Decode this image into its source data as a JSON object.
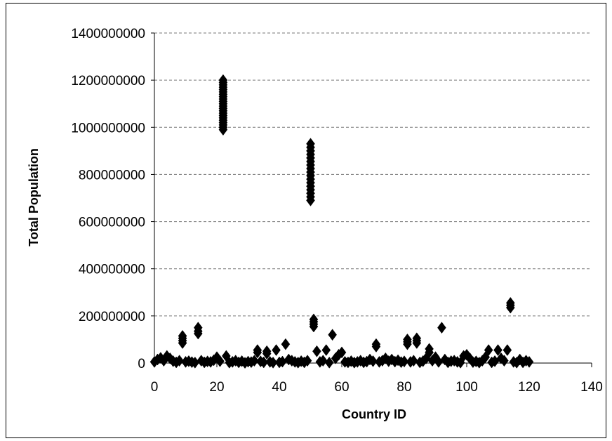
{
  "chart_data": {
    "type": "scatter",
    "title": "",
    "xlabel": "Country ID",
    "ylabel": "Total Population",
    "xlim": [
      0,
      140
    ],
    "ylim": [
      0,
      1400000000
    ],
    "x_ticks": [
      "0",
      "20",
      "40",
      "60",
      "80",
      "100",
      "120",
      "140"
    ],
    "y_ticks": [
      "0",
      "200000000",
      "400000000",
      "600000000",
      "800000000",
      "1000000000",
      "1200000000",
      "1400000000"
    ],
    "grid": "horizontal dashed",
    "legend": "none",
    "marker": "diamond",
    "marker_color": "#000000",
    "series": [
      {
        "points": [
          [
            0,
            5000000
          ],
          [
            1,
            15000000
          ],
          [
            2,
            22000000
          ],
          [
            3,
            10000000
          ],
          [
            4,
            30000000
          ],
          [
            5,
            20000000
          ],
          [
            6,
            8000000
          ],
          [
            7,
            3000000
          ],
          [
            8,
            10000000
          ],
          [
            9,
            85000000
          ],
          [
            9,
            95000000
          ],
          [
            9,
            105000000
          ],
          [
            9,
            115000000
          ],
          [
            10,
            5000000
          ],
          [
            11,
            8000000
          ],
          [
            12,
            4000000
          ],
          [
            13,
            2000000
          ],
          [
            14,
            125000000
          ],
          [
            14,
            135000000
          ],
          [
            14,
            150000000
          ],
          [
            15,
            10000000
          ],
          [
            16,
            3000000
          ],
          [
            17,
            7000000
          ],
          [
            18,
            5000000
          ],
          [
            19,
            12000000
          ],
          [
            20,
            25000000
          ],
          [
            21,
            8000000
          ],
          [
            22,
            990000000
          ],
          [
            22,
            1000000000
          ],
          [
            22,
            1010000000
          ],
          [
            22,
            1020000000
          ],
          [
            22,
            1030000000
          ],
          [
            22,
            1040000000
          ],
          [
            22,
            1050000000
          ],
          [
            22,
            1060000000
          ],
          [
            22,
            1070000000
          ],
          [
            22,
            1080000000
          ],
          [
            22,
            1090000000
          ],
          [
            22,
            1100000000
          ],
          [
            22,
            1110000000
          ],
          [
            22,
            1120000000
          ],
          [
            22,
            1130000000
          ],
          [
            22,
            1140000000
          ],
          [
            22,
            1150000000
          ],
          [
            22,
            1160000000
          ],
          [
            22,
            1170000000
          ],
          [
            22,
            1180000000
          ],
          [
            22,
            1190000000
          ],
          [
            22,
            1200000000
          ],
          [
            23,
            30000000
          ],
          [
            24,
            2000000
          ],
          [
            25,
            5000000
          ],
          [
            26,
            10000000
          ],
          [
            27,
            3000000
          ],
          [
            28,
            8000000
          ],
          [
            29,
            1000000
          ],
          [
            30,
            6000000
          ],
          [
            31,
            4000000
          ],
          [
            32,
            10000000
          ],
          [
            33,
            45000000
          ],
          [
            33,
            55000000
          ],
          [
            34,
            7000000
          ],
          [
            35,
            3000000
          ],
          [
            36,
            40000000
          ],
          [
            36,
            50000000
          ],
          [
            37,
            5000000
          ],
          [
            38,
            2000000
          ],
          [
            39,
            55000000
          ],
          [
            40,
            3000000
          ],
          [
            41,
            6000000
          ],
          [
            42,
            80000000
          ],
          [
            43,
            15000000
          ],
          [
            44,
            10000000
          ],
          [
            45,
            5000000
          ],
          [
            46,
            2000000
          ],
          [
            47,
            8000000
          ],
          [
            48,
            3000000
          ],
          [
            49,
            10000000
          ],
          [
            50,
            690000000
          ],
          [
            50,
            705000000
          ],
          [
            50,
            720000000
          ],
          [
            50,
            735000000
          ],
          [
            50,
            750000000
          ],
          [
            50,
            765000000
          ],
          [
            50,
            780000000
          ],
          [
            50,
            795000000
          ],
          [
            50,
            810000000
          ],
          [
            50,
            825000000
          ],
          [
            50,
            840000000
          ],
          [
            50,
            855000000
          ],
          [
            50,
            870000000
          ],
          [
            50,
            885000000
          ],
          [
            50,
            900000000
          ],
          [
            50,
            915000000
          ],
          [
            50,
            930000000
          ],
          [
            51,
            155000000
          ],
          [
            51,
            165000000
          ],
          [
            51,
            175000000
          ],
          [
            51,
            185000000
          ],
          [
            52,
            50000000
          ],
          [
            53,
            5000000
          ],
          [
            54,
            10000000
          ],
          [
            55,
            55000000
          ],
          [
            56,
            2000000
          ],
          [
            57,
            120000000
          ],
          [
            58,
            20000000
          ],
          [
            59,
            35000000
          ],
          [
            60,
            45000000
          ],
          [
            61,
            5000000
          ],
          [
            62,
            3000000
          ],
          [
            63,
            8000000
          ],
          [
            64,
            2000000
          ],
          [
            65,
            5000000
          ],
          [
            66,
            10000000
          ],
          [
            67,
            3000000
          ],
          [
            68,
            6000000
          ],
          [
            69,
            15000000
          ],
          [
            70,
            8000000
          ],
          [
            71,
            70000000
          ],
          [
            71,
            80000000
          ],
          [
            72,
            5000000
          ],
          [
            73,
            10000000
          ],
          [
            74,
            20000000
          ],
          [
            75,
            8000000
          ],
          [
            76,
            15000000
          ],
          [
            77,
            6000000
          ],
          [
            78,
            12000000
          ],
          [
            79,
            4000000
          ],
          [
            80,
            7000000
          ],
          [
            81,
            80000000
          ],
          [
            81,
            90000000
          ],
          [
            81,
            100000000
          ],
          [
            82,
            5000000
          ],
          [
            83,
            10000000
          ],
          [
            84,
            85000000
          ],
          [
            84,
            95000000
          ],
          [
            84,
            105000000
          ],
          [
            85,
            3000000
          ],
          [
            86,
            8000000
          ],
          [
            87,
            20000000
          ],
          [
            88,
            45000000
          ],
          [
            88,
            60000000
          ],
          [
            89,
            10000000
          ],
          [
            90,
            25000000
          ],
          [
            91,
            5000000
          ],
          [
            92,
            150000000
          ],
          [
            93,
            15000000
          ],
          [
            94,
            3000000
          ],
          [
            95,
            8000000
          ],
          [
            96,
            10000000
          ],
          [
            97,
            5000000
          ],
          [
            98,
            2000000
          ],
          [
            99,
            30000000
          ],
          [
            100,
            35000000
          ],
          [
            101,
            20000000
          ],
          [
            102,
            4000000
          ],
          [
            103,
            7000000
          ],
          [
            104,
            2000000
          ],
          [
            105,
            10000000
          ],
          [
            106,
            25000000
          ],
          [
            107,
            55000000
          ],
          [
            108,
            3000000
          ],
          [
            109,
            8000000
          ],
          [
            110,
            55000000
          ],
          [
            111,
            20000000
          ],
          [
            112,
            10000000
          ],
          [
            113,
            55000000
          ],
          [
            114,
            235000000
          ],
          [
            114,
            245000000
          ],
          [
            114,
            255000000
          ],
          [
            115,
            5000000
          ],
          [
            116,
            2000000
          ],
          [
            117,
            15000000
          ],
          [
            118,
            3000000
          ],
          [
            119,
            10000000
          ],
          [
            120,
            5000000
          ]
        ]
      }
    ]
  }
}
